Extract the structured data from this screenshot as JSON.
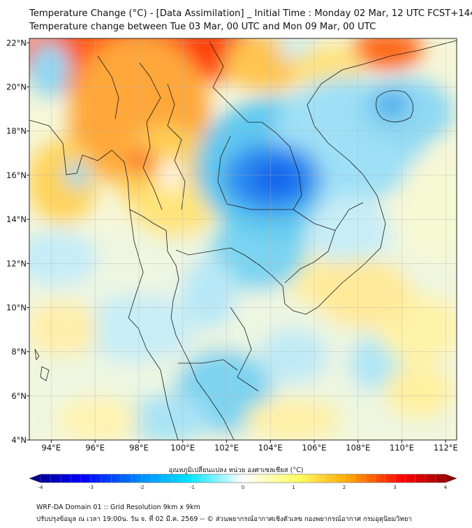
{
  "header": {
    "title_line1": "Temperature Change (°C) - [Data Assimilation] _ Initial Time : Monday 02 Mar, 12 UTC FCST+144",
    "title_line2": "Temperature change between Tue 03 Mar, 00 UTC and Mon 09 Mar, 00 UTC"
  },
  "map": {
    "lon_labels": [
      "94°E",
      "96°E",
      "98°E",
      "100°E",
      "102°E",
      "104°E",
      "106°E",
      "108°E",
      "110°E",
      "112°E"
    ],
    "lat_labels": [
      "22°N",
      "20°N",
      "18°N",
      "16°N",
      "14°N",
      "12°N",
      "10°N",
      "8°N",
      "6°N",
      "4°N"
    ],
    "lon_values": [
      94,
      96,
      98,
      100,
      102,
      104,
      106,
      108,
      110,
      112
    ],
    "lat_values": [
      22,
      20,
      18,
      16,
      14,
      12,
      10,
      8,
      6,
      4
    ],
    "lon_range": [
      93,
      112.5
    ],
    "lat_range": [
      4,
      22.2
    ]
  },
  "colorbar": {
    "label": "อุณหภูมิเปลี่ยนแปลง หน่วย องศาเซลเซียส (°C)",
    "tick_labels": [
      "-4",
      "-3",
      "-2",
      "-1",
      "0",
      "1",
      "2",
      "3",
      "4"
    ],
    "tick_values": [
      -4,
      -3,
      -2,
      -1,
      0,
      1,
      2,
      3,
      4
    ],
    "range": [
      -4,
      4
    ],
    "colors": [
      "#00007f",
      "#0000ff",
      "#0080ff",
      "#00e6ff",
      "#ffffff",
      "#ffff66",
      "#ffa500",
      "#ff0000",
      "#800000"
    ]
  },
  "footer": {
    "line1": "WRF-DA Domain 01 :: Grid Resolution 9km x 9km",
    "line2": "ปรับปรุงข้อมูล ณ เวลา 19:00น. วัน จ. ที่ 02 มี.ค. 2569 -- © ส่วนพยากรณ์อากาศเชิงตัวเลข กองพยากรณ์อากาศ กรมอุตุนิยมวิทยา"
  }
}
